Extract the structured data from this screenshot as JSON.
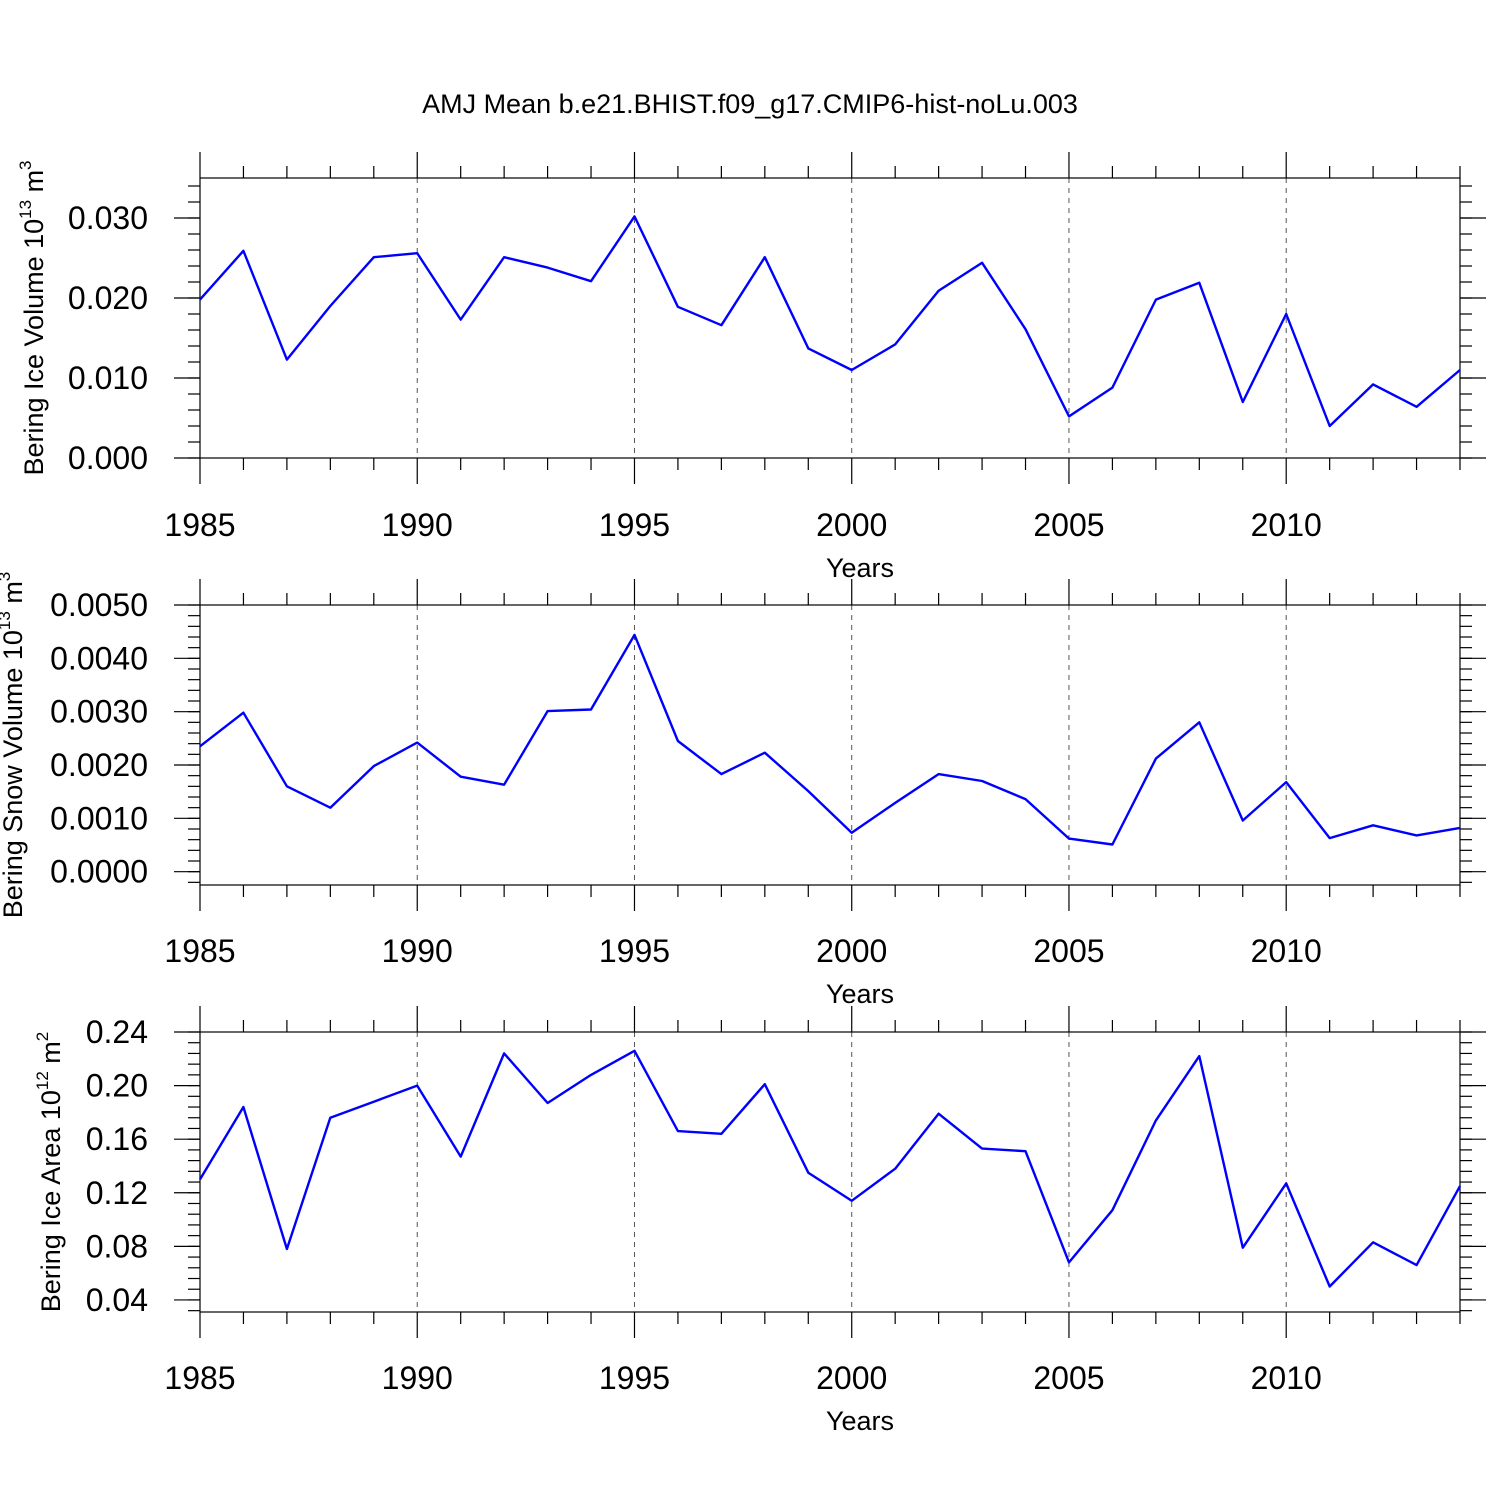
{
  "title": "AMJ Mean b.e21.BHIST.f09_g17.CMIP6-hist-noLu.003",
  "chart_data": [
    {
      "type": "line",
      "ylabel_main": "Bering Ice Volume 10",
      "ylabel_exp": "13",
      "ylabel_unit": " m",
      "ylabel_unit_exp": "3",
      "xlabel": "Years",
      "xlim": [
        1985,
        2014
      ],
      "ylim": [
        0.0,
        0.035
      ],
      "xticks": [
        1985,
        1990,
        1995,
        2000,
        2005,
        2010
      ],
      "xtick_labels": [
        "1985",
        "1990",
        "1995",
        "2000",
        "2005",
        "2010"
      ],
      "yticks": [
        0.0,
        0.01,
        0.02,
        0.03
      ],
      "ytick_labels": [
        "0.000",
        "0.010",
        "0.020",
        "0.030"
      ],
      "yminor_step": 0.002,
      "grid_x": true,
      "series": [
        {
          "name": "Bering Ice Volume",
          "color": "#0000ff",
          "x": [
            1985,
            1986,
            1987,
            1988,
            1989,
            1990,
            1991,
            1992,
            1993,
            1994,
            1995,
            1996,
            1997,
            1998,
            1999,
            2000,
            2001,
            2002,
            2003,
            2004,
            2005,
            2006,
            2007,
            2008,
            2009,
            2010,
            2011,
            2012,
            2013,
            2014
          ],
          "values": [
            0.0198,
            0.0259,
            0.0123,
            0.019,
            0.0251,
            0.0256,
            0.0173,
            0.0251,
            0.0238,
            0.0221,
            0.0302,
            0.0189,
            0.0166,
            0.0251,
            0.0137,
            0.011,
            0.0142,
            0.0209,
            0.0244,
            0.0161,
            0.0052,
            0.0088,
            0.0198,
            0.0219,
            0.007,
            0.018,
            0.004,
            0.0092,
            0.0064,
            0.011
          ]
        }
      ]
    },
    {
      "type": "line",
      "ylabel_main": "Bering Snow Volume 10",
      "ylabel_exp": "13",
      "ylabel_unit": " m",
      "ylabel_unit_exp": "3",
      "xlabel": "Years",
      "xlim": [
        1985,
        2014
      ],
      "ylim": [
        -0.00025,
        0.005
      ],
      "xticks": [
        1985,
        1990,
        1995,
        2000,
        2005,
        2010
      ],
      "xtick_labels": [
        "1985",
        "1990",
        "1995",
        "2000",
        "2005",
        "2010"
      ],
      "yticks": [
        0.0,
        0.001,
        0.002,
        0.003,
        0.004,
        0.005
      ],
      "ytick_labels": [
        "0.0000",
        "0.0010",
        "0.0020",
        "0.0030",
        "0.0040",
        "0.0050"
      ],
      "yminor_step": 0.0002,
      "grid_x": true,
      "series": [
        {
          "name": "Bering Snow Volume",
          "color": "#0000ff",
          "x": [
            1985,
            1986,
            1987,
            1988,
            1989,
            1990,
            1991,
            1992,
            1993,
            1994,
            1995,
            1996,
            1997,
            1998,
            1999,
            2000,
            2001,
            2002,
            2003,
            2004,
            2005,
            2006,
            2007,
            2008,
            2009,
            2010,
            2011,
            2012,
            2013,
            2014
          ],
          "values": [
            0.00235,
            0.00298,
            0.0016,
            0.0012,
            0.00198,
            0.00242,
            0.00178,
            0.00163,
            0.00301,
            0.00304,
            0.00444,
            0.00245,
            0.00183,
            0.00223,
            0.00151,
            0.00073,
            0.00129,
            0.00183,
            0.0017,
            0.00136,
            0.00062,
            0.00051,
            0.00212,
            0.0028,
            0.00096,
            0.00168,
            0.00063,
            0.00087,
            0.00068,
            0.00082
          ]
        }
      ]
    },
    {
      "type": "line",
      "ylabel_main": "Bering Ice Area 10",
      "ylabel_exp": "12",
      "ylabel_unit": " m",
      "ylabel_unit_exp": "2",
      "xlabel": "Years",
      "xlim": [
        1985,
        2014
      ],
      "ylim": [
        0.031,
        0.24
      ],
      "xticks": [
        1985,
        1990,
        1995,
        2000,
        2005,
        2010
      ],
      "xtick_labels": [
        "1985",
        "1990",
        "1995",
        "2000",
        "2005",
        "2010"
      ],
      "yticks": [
        0.04,
        0.08,
        0.12,
        0.16,
        0.2,
        0.24
      ],
      "ytick_labels": [
        "0.04",
        "0.08",
        "0.12",
        "0.16",
        "0.20",
        "0.24"
      ],
      "yminor_step": 0.008,
      "grid_x": true,
      "series": [
        {
          "name": "Bering Ice Area",
          "color": "#0000ff",
          "x": [
            1985,
            1986,
            1987,
            1988,
            1989,
            1990,
            1991,
            1992,
            1993,
            1994,
            1995,
            1996,
            1997,
            1998,
            1999,
            2000,
            2001,
            2002,
            2003,
            2004,
            2005,
            2006,
            2007,
            2008,
            2009,
            2010,
            2011,
            2012,
            2013,
            2014
          ],
          "values": [
            0.13,
            0.184,
            0.078,
            0.176,
            0.188,
            0.2,
            0.147,
            0.224,
            0.187,
            0.208,
            0.226,
            0.166,
            0.164,
            0.201,
            0.135,
            0.114,
            0.138,
            0.179,
            0.153,
            0.151,
            0.068,
            0.107,
            0.174,
            0.222,
            0.079,
            0.127,
            0.05,
            0.083,
            0.066,
            0.125
          ]
        }
      ]
    }
  ]
}
